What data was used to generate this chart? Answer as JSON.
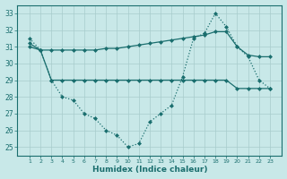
{
  "x": [
    1,
    2,
    3,
    4,
    5,
    6,
    7,
    8,
    9,
    10,
    11,
    12,
    13,
    14,
    15,
    16,
    17,
    18,
    19,
    20,
    21,
    22,
    23
  ],
  "upper": [
    31.2,
    30.8,
    30.8,
    30.8,
    30.8,
    30.8,
    30.8,
    30.9,
    30.9,
    31.0,
    31.1,
    31.2,
    31.3,
    31.4,
    31.5,
    31.6,
    31.7,
    31.9,
    31.9,
    31.0,
    30.5,
    30.4,
    30.4
  ],
  "middle": [
    31.0,
    30.8,
    29.0,
    29.0,
    29.0,
    29.0,
    29.0,
    29.0,
    29.0,
    29.0,
    29.0,
    29.0,
    29.0,
    29.0,
    29.0,
    29.0,
    29.0,
    29.0,
    29.0,
    28.5,
    28.5,
    28.5,
    28.5
  ],
  "vshape": [
    31.5,
    30.8,
    29.0,
    28.0,
    27.8,
    27.0,
    26.7,
    26.0,
    25.7,
    25.0,
    25.2,
    26.5,
    27.0,
    27.5,
    29.2,
    31.5,
    31.8,
    33.0,
    32.2,
    31.0,
    30.4,
    29.0,
    28.5
  ],
  "bg_color": "#c8e8e8",
  "line_color": "#1a6e6e",
  "grid_color": "#a8cccc",
  "ylim": [
    24.5,
    33.5
  ],
  "yticks": [
    25,
    26,
    27,
    28,
    29,
    30,
    31,
    32,
    33
  ],
  "xlabel": "Humidex (Indice chaleur)"
}
